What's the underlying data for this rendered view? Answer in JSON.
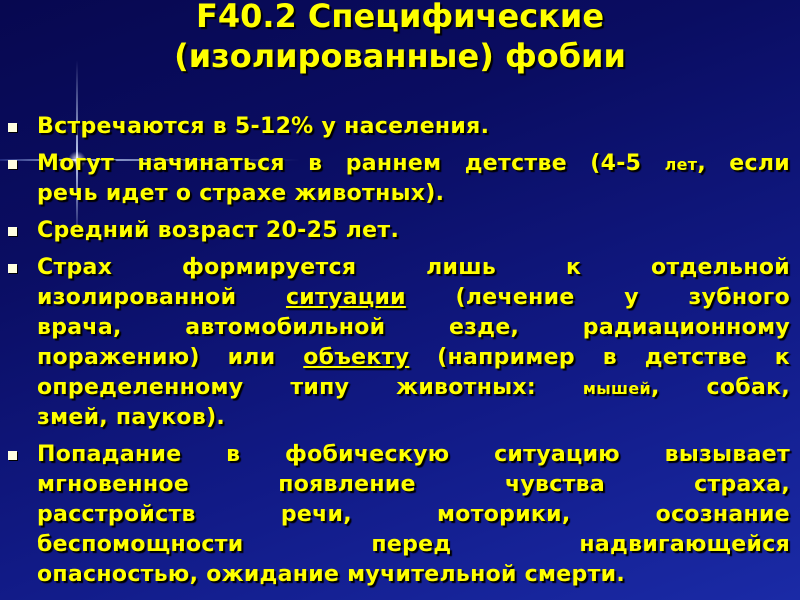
{
  "title": {
    "line1": "F40.2 Специфические",
    "line2": "(изолированные) фобии"
  },
  "text_color": "#ffff00",
  "background_color": "#0a0d62",
  "bullets": [
    {
      "lines": [
        [
          {
            "t": "Встречаются в 5-12% у населения."
          }
        ]
      ]
    },
    {
      "lines": [
        [
          {
            "t": "Могут начинаться в раннем детстве (4-5 "
          },
          {
            "t": "лет",
            "s": true
          },
          {
            "t": ", если"
          }
        ],
        [
          {
            "t": "речь идет о страхе животных)."
          }
        ]
      ]
    },
    {
      "lines": [
        [
          {
            "t": "Средний возраст 20-25 лет."
          }
        ]
      ]
    },
    {
      "lines": [
        [
          {
            "t": "Страх формируется лишь к отдельной"
          }
        ],
        [
          {
            "t": "изолированной "
          },
          {
            "t": "ситуации",
            "u": true
          },
          {
            "t": " (лечение у зубного"
          }
        ],
        [
          {
            "t": "врача, автомобильной езде, радиационному"
          }
        ],
        [
          {
            "t": "поражению) или "
          },
          {
            "t": "объекту",
            "u": true
          },
          {
            "t": " (например в детстве к"
          }
        ],
        [
          {
            "t": "определенному типу животных: "
          },
          {
            "t": "мышей",
            "s": true
          },
          {
            "t": ", собак,"
          }
        ],
        [
          {
            "t": "змей, пауков)."
          }
        ]
      ]
    },
    {
      "lines": [
        [
          {
            "t": "Попадание в фобическую ситуацию вызывает"
          }
        ],
        [
          {
            "t": "мгновенное появление чувства страха,"
          }
        ],
        [
          {
            "t": "расстройств речи, моторики, осознание"
          }
        ],
        [
          {
            "t": "беспомощности перед надвигающейся"
          }
        ],
        [
          {
            "t": "опасностью, ожидание мучительной смерти."
          }
        ]
      ]
    }
  ]
}
